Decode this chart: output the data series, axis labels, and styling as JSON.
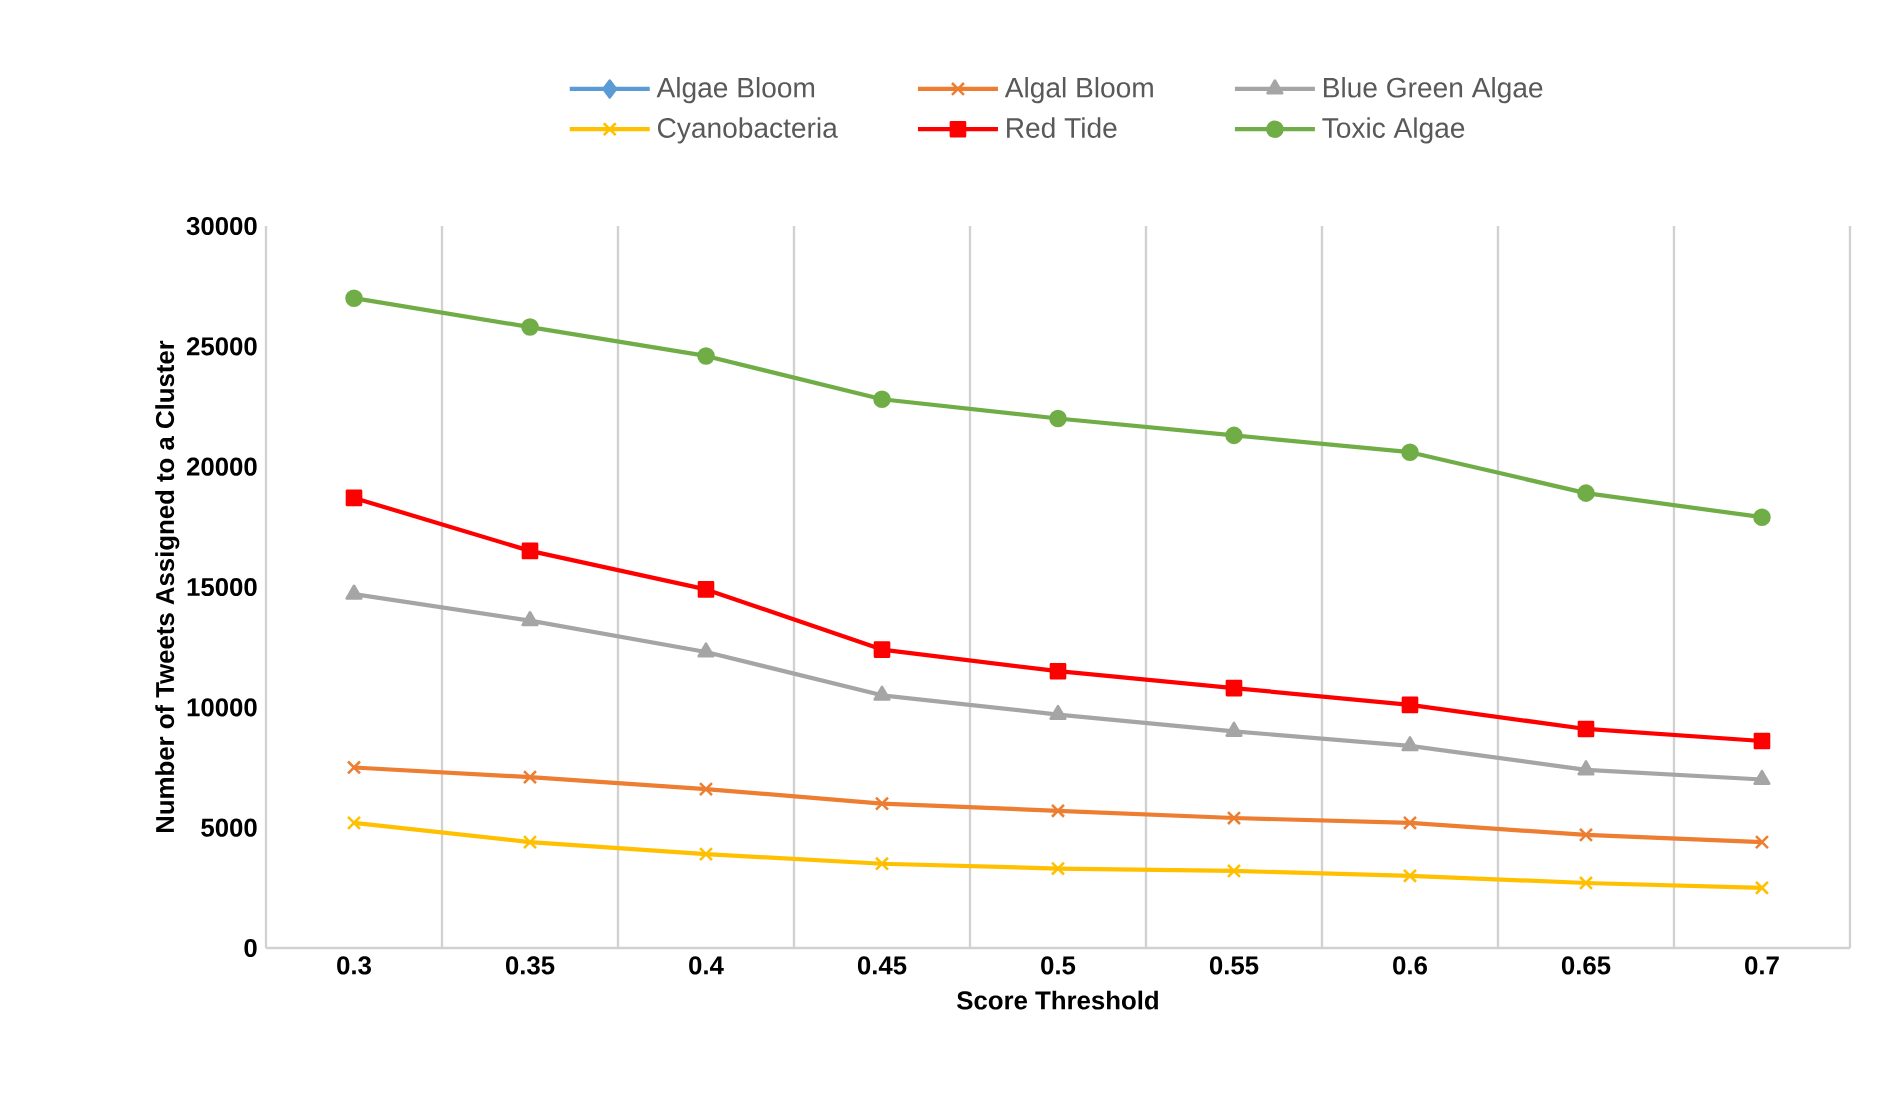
{
  "chart_data": {
    "type": "line",
    "xlabel": "Score Threshold",
    "ylabel": "Number of Tweets Assigned to a Cluster",
    "categories": [
      "0.3",
      "0.35",
      "0.4",
      "0.45",
      "0.5",
      "0.55",
      "0.6",
      "0.65",
      "0.7"
    ],
    "ylim": [
      0,
      30000
    ],
    "yticks": [
      0,
      5000,
      10000,
      15000,
      20000,
      25000,
      30000
    ],
    "grid": "x",
    "legend": "top",
    "series": [
      {
        "name": "Algae Bloom",
        "color": "#5b9bd5",
        "marker": "diamond",
        "values": [
          null,
          null,
          null,
          null,
          null,
          null,
          null,
          null,
          null
        ]
      },
      {
        "name": "Algal Bloom",
        "color": "#ed7d31",
        "marker": "cross",
        "values": [
          7500,
          7100,
          6600,
          6000,
          5700,
          5400,
          5200,
          4700,
          4400
        ]
      },
      {
        "name": "Blue Green Algae",
        "color": "#a5a5a5",
        "marker": "triangle",
        "values": [
          14700,
          13600,
          12300,
          10500,
          9700,
          9000,
          8400,
          7400,
          7000
        ]
      },
      {
        "name": "Cyanobacteria",
        "color": "#ffc000",
        "marker": "cross",
        "values": [
          5200,
          4400,
          3900,
          3500,
          3300,
          3200,
          3000,
          2700,
          2500
        ]
      },
      {
        "name": "Red Tide",
        "color": "#ff0000",
        "marker": "square",
        "values": [
          18700,
          16500,
          14900,
          12400,
          11500,
          10800,
          10100,
          9100,
          8600
        ]
      },
      {
        "name": "Toxic Algae",
        "color": "#70ad47",
        "marker": "circle",
        "values": [
          27000,
          25800,
          24600,
          22800,
          22000,
          21300,
          20600,
          18900,
          17900
        ]
      }
    ]
  }
}
